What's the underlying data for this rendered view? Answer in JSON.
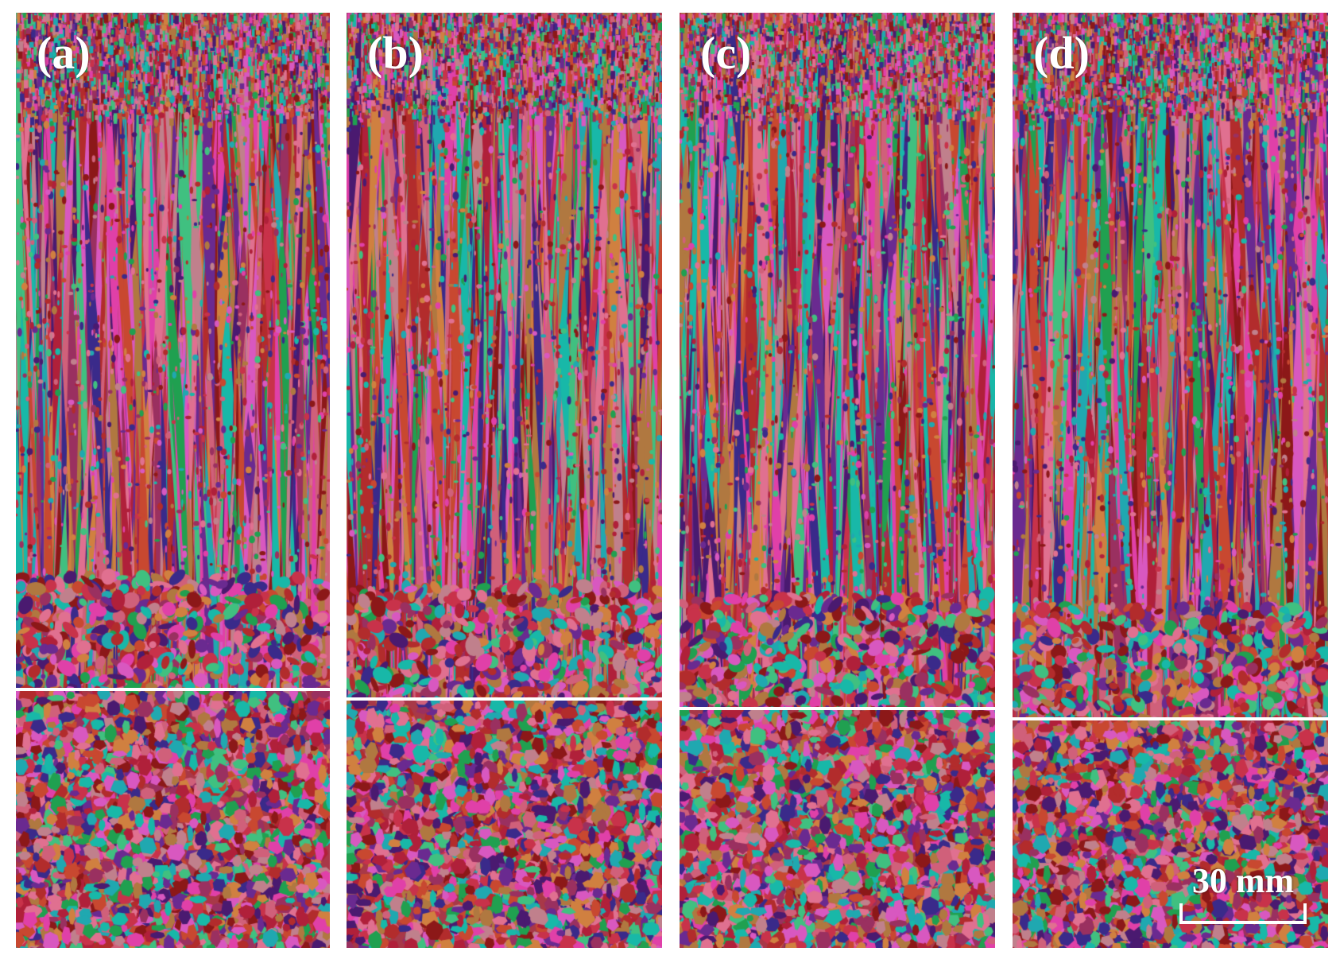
{
  "figure": {
    "panels": [
      {
        "id": "a",
        "label": "(a)"
      },
      {
        "id": "b",
        "label": "(b)"
      },
      {
        "id": "c",
        "label": "(c)"
      },
      {
        "id": "d",
        "label": "(d)"
      }
    ],
    "scale_bar": {
      "label": "30 mm"
    },
    "colors": {
      "background": "#ffffff",
      "grain_palette": [
        "#c8324a",
        "#b0203a",
        "#d0607a",
        "#e040a8",
        "#d858c0",
        "#b22c2c",
        "#c84830",
        "#8c1818",
        "#6a2a90",
        "#4a1a70",
        "#20a8b0",
        "#18b8a8",
        "#20a050",
        "#40c080",
        "#b07840",
        "#c0808c",
        "#e07090",
        "#9a3060",
        "#3a2a8a",
        "#d08040"
      ]
    }
  }
}
